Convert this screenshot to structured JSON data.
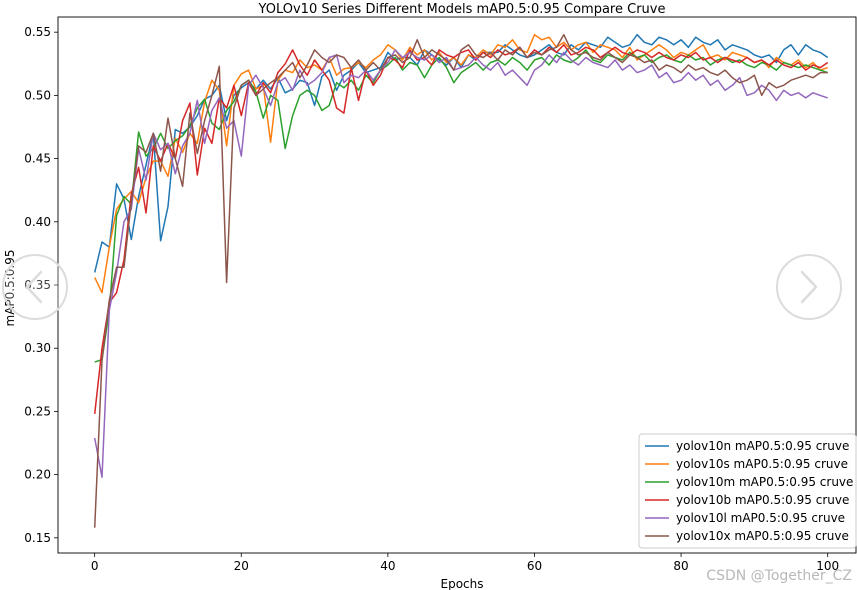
{
  "chart_data": {
    "type": "line",
    "title": "YOLOv10 Series Different Models mAP0.5:0.95 Compare Cruve",
    "xlabel": "Epochs",
    "ylabel": "mAP0.5:0.95",
    "xlim": [
      -5,
      104
    ],
    "ylim": [
      0.138,
      0.562
    ],
    "xticks": [
      0,
      20,
      40,
      60,
      80,
      100
    ],
    "yticks": [
      0.15,
      0.2,
      0.25,
      0.3,
      0.35,
      0.4,
      0.45,
      0.5,
      0.55
    ],
    "ytick_labels": [
      "0.15",
      "0.20",
      "0.25",
      "0.30",
      "0.35",
      "0.40",
      "0.45",
      "0.50",
      "0.55"
    ],
    "grid": false,
    "legend_position": "lower-right",
    "series": [
      {
        "name": "yolov10n mAP0.5:0.95 cruve",
        "color": "#1f77b4",
        "values": [
          0.36,
          0.384,
          0.38,
          0.43,
          0.418,
          0.386,
          0.42,
          0.445,
          0.47,
          0.385,
          0.412,
          0.473,
          0.47,
          0.475,
          0.484,
          0.497,
          0.5,
          0.508,
          0.48,
          0.5,
          0.506,
          0.51,
          0.505,
          0.512,
          0.505,
          0.514,
          0.502,
          0.505,
          0.512,
          0.51,
          0.492,
          0.515,
          0.52,
          0.504,
          0.516,
          0.52,
          0.526,
          0.518,
          0.52,
          0.522,
          0.534,
          0.528,
          0.53,
          0.53,
          0.524,
          0.536,
          0.532,
          0.528,
          0.524,
          0.53,
          0.522,
          0.532,
          0.528,
          0.534,
          0.534,
          0.534,
          0.54,
          0.536,
          0.532,
          0.53,
          0.532,
          0.536,
          0.54,
          0.534,
          0.532,
          0.54,
          0.536,
          0.542,
          0.54,
          0.538,
          0.546,
          0.542,
          0.538,
          0.54,
          0.548,
          0.542,
          0.54,
          0.546,
          0.544,
          0.54,
          0.544,
          0.538,
          0.546,
          0.542,
          0.54,
          0.544,
          0.536,
          0.54,
          0.538,
          0.536,
          0.532,
          0.53,
          0.532,
          0.526,
          0.536,
          0.54,
          0.532,
          0.54,
          0.536,
          0.534,
          0.53
        ]
      },
      {
        "name": "yolov10s mAP0.5:0.95 cruve",
        "color": "#ff7f0e",
        "values": [
          0.356,
          0.344,
          0.38,
          0.41,
          0.418,
          0.424,
          0.415,
          0.435,
          0.448,
          0.448,
          0.436,
          0.466,
          0.455,
          0.47,
          0.462,
          0.495,
          0.512,
          0.504,
          0.46,
          0.508,
          0.517,
          0.52,
          0.505,
          0.508,
          0.463,
          0.512,
          0.52,
          0.518,
          0.528,
          0.522,
          0.524,
          0.52,
          0.53,
          0.516,
          0.521,
          0.522,
          0.526,
          0.522,
          0.528,
          0.532,
          0.54,
          0.536,
          0.528,
          0.538,
          0.532,
          0.536,
          0.528,
          0.534,
          0.526,
          0.53,
          0.524,
          0.532,
          0.53,
          0.536,
          0.532,
          0.54,
          0.538,
          0.544,
          0.536,
          0.534,
          0.548,
          0.544,
          0.546,
          0.538,
          0.542,
          0.536,
          0.54,
          0.542,
          0.534,
          0.54,
          0.538,
          0.536,
          0.53,
          0.538,
          0.528,
          0.532,
          0.536,
          0.54,
          0.536,
          0.53,
          0.534,
          0.532,
          0.536,
          0.54,
          0.53,
          0.532,
          0.528,
          0.534,
          0.532,
          0.53,
          0.526,
          0.528,
          0.522,
          0.53,
          0.526,
          0.524,
          0.528,
          0.522,
          0.526,
          0.52,
          0.522
        ]
      },
      {
        "name": "yolov10m mAP0.5:0.95 cruve",
        "color": "#2ca02c",
        "values": [
          0.289,
          0.291,
          0.33,
          0.405,
          0.42,
          0.414,
          0.471,
          0.452,
          0.458,
          0.47,
          0.458,
          0.464,
          0.468,
          0.476,
          0.49,
          0.497,
          0.478,
          0.473,
          0.488,
          0.495,
          0.508,
          0.512,
          0.503,
          0.482,
          0.5,
          0.496,
          0.458,
          0.484,
          0.5,
          0.504,
          0.5,
          0.488,
          0.492,
          0.51,
          0.506,
          0.512,
          0.504,
          0.516,
          0.51,
          0.52,
          0.524,
          0.53,
          0.52,
          0.526,
          0.524,
          0.514,
          0.524,
          0.53,
          0.522,
          0.51,
          0.518,
          0.522,
          0.526,
          0.52,
          0.526,
          0.528,
          0.524,
          0.53,
          0.526,
          0.52,
          0.528,
          0.53,
          0.524,
          0.532,
          0.528,
          0.526,
          0.53,
          0.536,
          0.528,
          0.526,
          0.532,
          0.53,
          0.528,
          0.534,
          0.53,
          0.532,
          0.526,
          0.53,
          0.532,
          0.528,
          0.526,
          0.532,
          0.528,
          0.53,
          0.524,
          0.528,
          0.53,
          0.526,
          0.528,
          0.524,
          0.522,
          0.526,
          0.524,
          0.52,
          0.526,
          0.524,
          0.522,
          0.524,
          0.522,
          0.52,
          0.518
        ]
      },
      {
        "name": "yolov10b mAP0.5:0.95 cruve",
        "color": "#d62728",
        "values": [
          0.248,
          0.3,
          0.336,
          0.344,
          0.37,
          0.422,
          0.443,
          0.407,
          0.46,
          0.448,
          0.462,
          0.45,
          0.48,
          0.494,
          0.437,
          0.474,
          0.462,
          0.498,
          0.49,
          0.508,
          0.484,
          0.51,
          0.5,
          0.51,
          0.502,
          0.518,
          0.525,
          0.536,
          0.524,
          0.516,
          0.528,
          0.52,
          0.512,
          0.49,
          0.486,
          0.522,
          0.496,
          0.52,
          0.508,
          0.516,
          0.53,
          0.528,
          0.522,
          0.536,
          0.528,
          0.53,
          0.524,
          0.536,
          0.532,
          0.53,
          0.534,
          0.536,
          0.528,
          0.534,
          0.53,
          0.536,
          0.532,
          0.534,
          0.538,
          0.53,
          0.536,
          0.532,
          0.538,
          0.534,
          0.54,
          0.532,
          0.534,
          0.538,
          0.536,
          0.53,
          0.534,
          0.538,
          0.534,
          0.532,
          0.536,
          0.534,
          0.53,
          0.534,
          0.53,
          0.528,
          0.532,
          0.53,
          0.534,
          0.528,
          0.53,
          0.526,
          0.53,
          0.528,
          0.526,
          0.53,
          0.526,
          0.528,
          0.524,
          0.528,
          0.524,
          0.522,
          0.526,
          0.52,
          0.524,
          0.522,
          0.526
        ]
      },
      {
        "name": "yolov10l mAP0.5:0.95 cruve",
        "color": "#9467bd",
        "values": [
          0.229,
          0.198,
          0.33,
          0.36,
          0.4,
          0.41,
          0.458,
          0.433,
          0.47,
          0.457,
          0.462,
          0.438,
          0.46,
          0.47,
          0.496,
          0.462,
          0.488,
          0.498,
          0.474,
          0.48,
          0.452,
          0.508,
          0.516,
          0.506,
          0.492,
          0.51,
          0.514,
          0.504,
          0.52,
          0.508,
          0.512,
          0.518,
          0.53,
          0.532,
          0.51,
          0.516,
          0.514,
          0.52,
          0.512,
          0.52,
          0.526,
          0.536,
          0.53,
          0.534,
          0.53,
          0.528,
          0.532,
          0.526,
          0.53,
          0.52,
          0.522,
          0.524,
          0.53,
          0.524,
          0.52,
          0.526,
          0.516,
          0.52,
          0.514,
          0.508,
          0.52,
          0.524,
          0.532,
          0.526,
          0.534,
          0.528,
          0.524,
          0.53,
          0.526,
          0.524,
          0.522,
          0.528,
          0.52,
          0.524,
          0.518,
          0.52,
          0.524,
          0.514,
          0.518,
          0.51,
          0.512,
          0.518,
          0.512,
          0.516,
          0.508,
          0.512,
          0.504,
          0.508,
          0.514,
          0.5,
          0.502,
          0.508,
          0.504,
          0.496,
          0.504,
          0.5,
          0.502,
          0.498,
          0.502,
          0.5,
          0.498
        ]
      },
      {
        "name": "yolov10x mAP0.5:0.95 cruve",
        "color": "#8c564b",
        "values": [
          0.158,
          0.29,
          0.338,
          0.364,
          0.364,
          0.416,
          0.46,
          0.455,
          0.47,
          0.44,
          0.482,
          0.45,
          0.428,
          0.486,
          0.454,
          0.48,
          0.5,
          0.523,
          0.352,
          0.49,
          0.508,
          0.512,
          0.5,
          0.505,
          0.51,
          0.514,
          0.52,
          0.526,
          0.514,
          0.524,
          0.536,
          0.53,
          0.526,
          0.532,
          0.53,
          0.522,
          0.528,
          0.52,
          0.526,
          0.52,
          0.53,
          0.532,
          0.526,
          0.53,
          0.544,
          0.53,
          0.536,
          0.532,
          0.528,
          0.52,
          0.536,
          0.54,
          0.532,
          0.53,
          0.534,
          0.528,
          0.536,
          0.532,
          0.538,
          0.53,
          0.534,
          0.532,
          0.536,
          0.538,
          0.548,
          0.536,
          0.532,
          0.534,
          0.53,
          0.528,
          0.534,
          0.53,
          0.526,
          0.532,
          0.53,
          0.526,
          0.528,
          0.52,
          0.524,
          0.522,
          0.518,
          0.524,
          0.52,
          0.522,
          0.518,
          0.516,
          0.52,
          0.514,
          0.51,
          0.512,
          0.516,
          0.5,
          0.51,
          0.506,
          0.508,
          0.512,
          0.514,
          0.516,
          0.514,
          0.518,
          0.518
        ]
      }
    ]
  },
  "overlay": {
    "watermark": "CSDN @Together_CZ",
    "prev_icon": "chevron-left-icon",
    "next_icon": "chevron-right-icon"
  }
}
